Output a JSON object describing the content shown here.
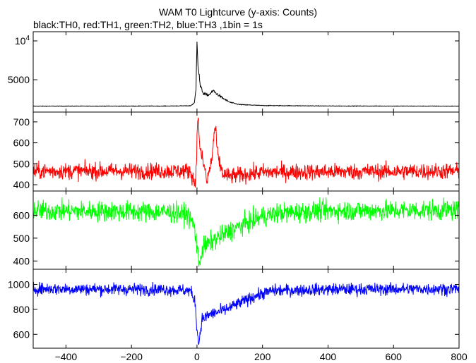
{
  "chart_data": {
    "type": "line",
    "title": "WAM T0 Lightcurve (y-axis: Counts)",
    "subtitle": "black:TH0, red:TH1, green:TH2, blue:TH3 ,1bin = 1s",
    "xlabel": "",
    "xlim": [
      -500,
      800
    ],
    "x_ticks": [
      -400,
      -200,
      0,
      200,
      400,
      600,
      800
    ],
    "x_tick_labels": [
      "−400",
      "−200",
      "0",
      "200",
      "400",
      "600",
      "800"
    ],
    "grid": false,
    "panels": [
      {
        "series_name": "TH0",
        "color": "#000000",
        "ylim": [
          1200,
          11000
        ],
        "y_ticks": [
          5000,
          10000
        ],
        "y_tick_labels": [
          "5000",
          "10^4"
        ],
        "baseline": 1600,
        "noise": 25,
        "features": [
          {
            "type": "burst_peak",
            "x": 0,
            "y": 10500
          },
          {
            "type": "bump",
            "x": 50,
            "y": 3600
          },
          {
            "type": "decay_tail",
            "x_end": 200
          }
        ],
        "points": [
          [
            -500,
            1600
          ],
          [
            -100,
            1610
          ],
          [
            -20,
            1650
          ],
          [
            -8,
            2000
          ],
          [
            -3,
            3800
          ],
          [
            0,
            10500
          ],
          [
            3,
            7000
          ],
          [
            10,
            4200
          ],
          [
            20,
            3200
          ],
          [
            35,
            3000
          ],
          [
            50,
            3600
          ],
          [
            60,
            3200
          ],
          [
            80,
            2600
          ],
          [
            100,
            2100
          ],
          [
            130,
            1800
          ],
          [
            200,
            1680
          ],
          [
            400,
            1620
          ],
          [
            800,
            1600
          ]
        ]
      },
      {
        "series_name": "TH1",
        "color": "#ff0000",
        "ylim": [
          380,
          740
        ],
        "y_ticks": [
          400,
          500,
          600,
          700
        ],
        "y_tick_labels": [
          "400",
          "500",
          "600",
          "700"
        ],
        "baseline": 465,
        "noise": 28,
        "features": [
          {
            "type": "dip",
            "x": -5,
            "y": 400
          },
          {
            "type": "burst_peak",
            "x": 3,
            "y": 730
          },
          {
            "type": "dip",
            "x": 30,
            "y": 410
          },
          {
            "type": "bump",
            "x": 55,
            "y": 680
          }
        ],
        "points": [
          [
            -500,
            465
          ],
          [
            -20,
            465
          ],
          [
            -5,
            400
          ],
          [
            3,
            730
          ],
          [
            10,
            560
          ],
          [
            25,
            470
          ],
          [
            30,
            410
          ],
          [
            45,
            520
          ],
          [
            55,
            680
          ],
          [
            65,
            520
          ],
          [
            80,
            450
          ],
          [
            100,
            440
          ],
          [
            200,
            460
          ],
          [
            800,
            465
          ]
        ]
      },
      {
        "series_name": "TH2",
        "color": "#00ff00",
        "ylim": [
          370,
          700
        ],
        "y_ticks": [
          400,
          500,
          600
        ],
        "y_tick_labels": [
          "400",
          "500",
          "600"
        ],
        "baseline": 620,
        "noise": 32,
        "features": [
          {
            "type": "drop_start",
            "x": -30
          },
          {
            "type": "dip",
            "x": 5,
            "y": 390
          },
          {
            "type": "recovery",
            "x_end": 250
          }
        ],
        "points": [
          [
            -500,
            620
          ],
          [
            -100,
            615
          ],
          [
            -30,
            605
          ],
          [
            -10,
            560
          ],
          [
            0,
            470
          ],
          [
            5,
            390
          ],
          [
            20,
            460
          ],
          [
            50,
            490
          ],
          [
            100,
            530
          ],
          [
            150,
            565
          ],
          [
            200,
            595
          ],
          [
            250,
            610
          ],
          [
            400,
            620
          ],
          [
            800,
            622
          ]
        ]
      },
      {
        "series_name": "TH3",
        "color": "#0000ff",
        "ylim": [
          500,
          1110
        ],
        "y_ticks": [
          600,
          800,
          1000
        ],
        "y_tick_labels": [
          "600",
          "800",
          "1000"
        ],
        "baseline": 960,
        "noise": 35,
        "features": [
          {
            "type": "drop_start",
            "x": -20
          },
          {
            "type": "dip",
            "x": 5,
            "y": 520
          },
          {
            "type": "recovery",
            "x_end": 230
          }
        ],
        "points": [
          [
            -500,
            965
          ],
          [
            -100,
            960
          ],
          [
            -20,
            950
          ],
          [
            -5,
            850
          ],
          [
            0,
            640
          ],
          [
            5,
            520
          ],
          [
            15,
            720
          ],
          [
            40,
            760
          ],
          [
            80,
            790
          ],
          [
            130,
            850
          ],
          [
            180,
            910
          ],
          [
            230,
            950
          ],
          [
            400,
            960
          ],
          [
            800,
            965
          ]
        ]
      }
    ]
  }
}
